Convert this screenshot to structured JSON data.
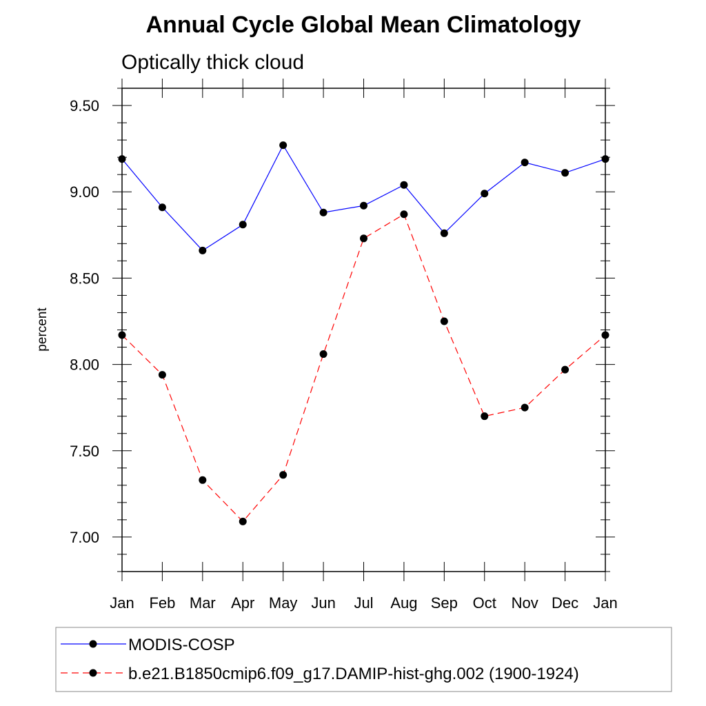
{
  "chart_data": {
    "type": "line",
    "title": "Annual Cycle Global Mean Climatology",
    "subtitle": "Optically thick cloud",
    "xlabel": "",
    "ylabel": "percent",
    "categories": [
      "Jan",
      "Feb",
      "Mar",
      "Apr",
      "May",
      "Jun",
      "Jul",
      "Aug",
      "Sep",
      "Oct",
      "Nov",
      "Dec",
      "Jan"
    ],
    "ylim": [
      6.8,
      9.6
    ],
    "yticks": [
      7.0,
      7.5,
      8.0,
      8.5,
      9.0,
      9.5
    ],
    "ytick_labels": [
      "7.00",
      "7.50",
      "8.00",
      "8.50",
      "9.00",
      "9.50"
    ],
    "legend_position": "bottom",
    "series": [
      {
        "name": "MODIS-COSP",
        "color": "#0000ff",
        "line_style": "solid",
        "marker": "filled-circle",
        "values": [
          9.19,
          8.91,
          8.66,
          8.81,
          9.27,
          8.88,
          8.92,
          9.04,
          8.76,
          8.99,
          9.17,
          9.11,
          9.19
        ]
      },
      {
        "name": "b.e21.B1850cmip6.f09_g17.DAMIP-hist-ghg.002 (1900-1924)",
        "color": "#ff0000",
        "line_style": "dashed",
        "marker": "filled-circle",
        "values": [
          8.17,
          7.94,
          7.33,
          7.09,
          7.36,
          8.06,
          8.73,
          8.87,
          8.25,
          7.7,
          7.75,
          7.97,
          8.17
        ]
      }
    ]
  }
}
